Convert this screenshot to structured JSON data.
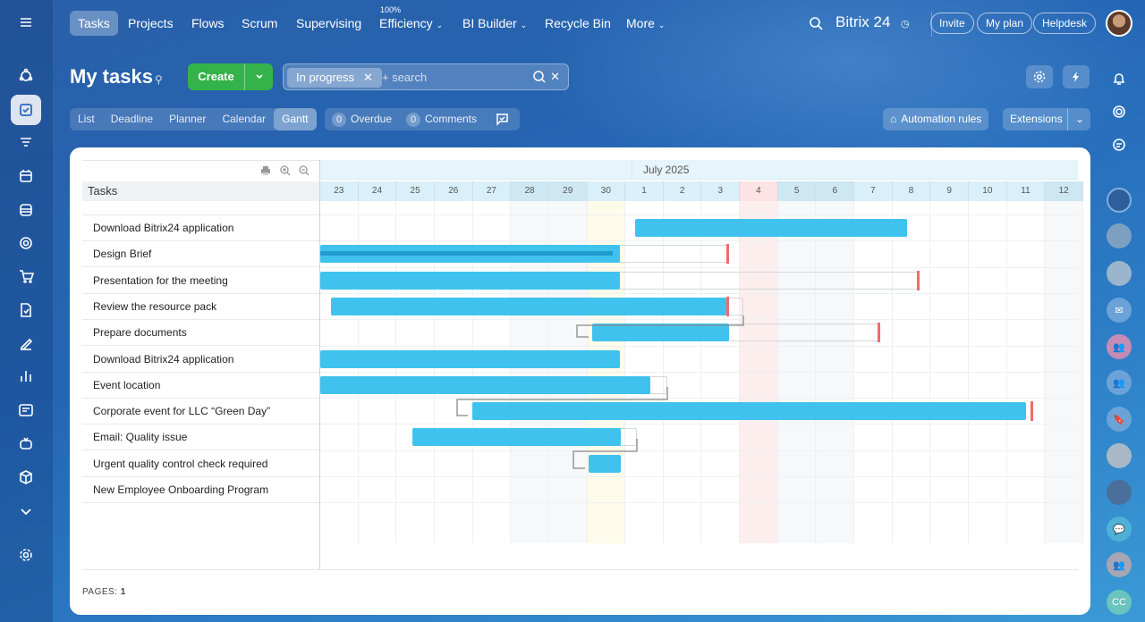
{
  "topnav": {
    "items": [
      "Tasks",
      "Projects",
      "Flows",
      "Scrum",
      "Supervising",
      "Efficiency",
      "BI Builder",
      "Recycle Bin",
      "More"
    ],
    "efficiency_value": "100%",
    "brand": "Bitrix 24",
    "invite": "Invite",
    "my_plan": "My plan",
    "helpdesk": "Helpdesk"
  },
  "page": {
    "title": "My tasks",
    "create_label": "Create",
    "filter_chip": "In progress",
    "search_placeholder": "+ search"
  },
  "views": [
    "List",
    "Deadline",
    "Planner",
    "Calendar",
    "Gantt"
  ],
  "active_view": "Gantt",
  "counters": {
    "overdue_count": "0",
    "overdue_label": "Overdue",
    "comments_count": "0",
    "comments_label": "Comments"
  },
  "actions": {
    "automation": "Automation rules",
    "extensions": "Extensions"
  },
  "gantt": {
    "tasks_header": "Tasks",
    "month": "July 2025",
    "days": [
      "23",
      "24",
      "25",
      "26",
      "27",
      "28",
      "29",
      "30",
      "1",
      "2",
      "3",
      "4",
      "5",
      "6",
      "7",
      "8",
      "9",
      "10",
      "11",
      "12"
    ],
    "tasks": [
      "Download Bitrix24 application",
      "Design Brief",
      "Presentation for the meeting",
      "Review the resource pack",
      "Prepare documents",
      "Download Bitrix24 application",
      "Event location",
      "Corporate event for LLC “Green Day”",
      "Email: Quality issue",
      "Urgent quality control check required",
      "New Employee Onboarding Program"
    ],
    "pages_label": "PAGES:",
    "pages_value": "1"
  },
  "right_avatar_initials": "CC",
  "colors": {
    "accent": "#3fc3ee",
    "create": "#34b34a",
    "deadline": "#f26a6a"
  }
}
